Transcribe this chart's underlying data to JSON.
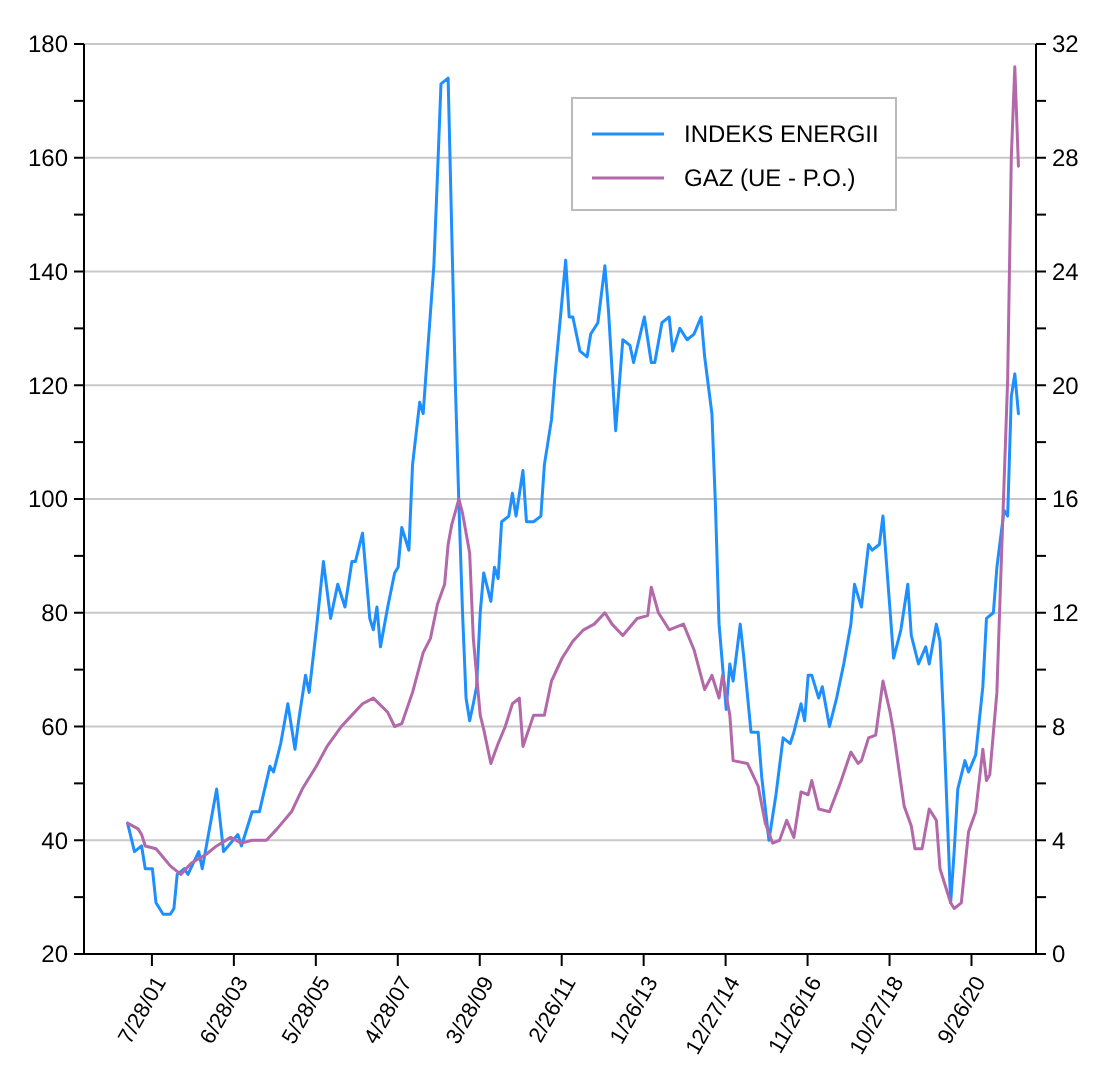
{
  "chart_data": {
    "type": "line",
    "xlim": [
      "1999-12-26",
      "2022-03-31"
    ],
    "xticks": [
      {
        "value": "2001-07-28",
        "label": "7/28/01"
      },
      {
        "value": "2003-06-28",
        "label": "6/28/03"
      },
      {
        "value": "2005-05-28",
        "label": "5/28/05"
      },
      {
        "value": "2007-04-28",
        "label": "4/28/07"
      },
      {
        "value": "2009-03-28",
        "label": "3/28/09"
      },
      {
        "value": "2011-02-26",
        "label": "2/26/11"
      },
      {
        "value": "2013-01-26",
        "label": "1/26/13"
      },
      {
        "value": "2014-12-27",
        "label": "12/27/14"
      },
      {
        "value": "2016-11-26",
        "label": "11/26/16"
      },
      {
        "value": "2018-10-27",
        "label": "10/27/18"
      },
      {
        "value": "2020-09-26",
        "label": "9/26/20"
      }
    ],
    "ylim": [
      20,
      180
    ],
    "yticks": [
      20,
      {
        "value": 30,
        "label": null
      },
      40,
      {
        "value": 50,
        "label": null
      },
      60,
      {
        "value": 70,
        "label": null
      },
      80,
      {
        "value": 90,
        "label": null
      },
      100,
      {
        "value": 110,
        "label": null
      },
      120,
      {
        "value": 130,
        "label": null
      },
      140,
      {
        "value": 150,
        "label": null
      },
      160,
      {
        "value": 170,
        "label": null
      },
      180
    ],
    "y2lim": [
      0,
      32
    ],
    "y2ticks": [
      0,
      {
        "value": 2,
        "label": null
      },
      4,
      {
        "value": 6,
        "label": null
      },
      8,
      {
        "value": 10,
        "label": null
      },
      12,
      {
        "value": 14,
        "label": null
      },
      16,
      {
        "value": 18,
        "label": null
      },
      20,
      {
        "value": 22,
        "label": null
      },
      24,
      {
        "value": 26,
        "label": null
      },
      28,
      {
        "value": 30,
        "label": null
      },
      32
    ],
    "grid": "y",
    "legend": "top right",
    "marker": "none",
    "line_style": "solid",
    "series": [
      {
        "name": "INDEKS ENERGII",
        "color": "#1e8fff",
        "x": [
          "2001-01",
          "2001-03",
          "2001-05",
          "2001-06",
          "2001-08",
          "2001-09",
          "2001-11",
          "2002-01",
          "2002-02",
          "2002-03",
          "2002-05",
          "2002-06",
          "2002-09",
          "2002-10",
          "2003-02",
          "2003-04",
          "2003-08",
          "2003-09",
          "2003-12",
          "2004-02",
          "2004-05",
          "2004-06",
          "2004-08",
          "2004-10",
          "2004-12",
          "2005-01",
          "2005-03",
          "2005-04",
          "2005-06",
          "2005-08",
          "2005-10",
          "2005-12",
          "2006-02",
          "2006-04",
          "2006-05",
          "2006-07",
          "2006-09",
          "2006-10",
          "2006-11",
          "2006-12",
          "2007-02",
          "2007-04",
          "2007-05",
          "2007-06",
          "2007-08",
          "2007-09",
          "2007-11",
          "2007-12",
          "2008-01",
          "2008-03",
          "2008-04",
          "2008-05",
          "2008-07",
          "2008-08",
          "2008-09",
          "2008-10",
          "2008-11",
          "2008-12",
          "2009-01",
          "2009-02",
          "2009-03",
          "2009-04",
          "2009-05",
          "2009-07",
          "2009-08",
          "2009-09",
          "2009-10",
          "2009-12",
          "2010-01",
          "2010-02",
          "2010-04",
          "2010-05",
          "2010-07",
          "2010-09",
          "2010-10",
          "2010-12",
          "2011-01",
          "2011-03",
          "2011-04",
          "2011-05",
          "2011-06",
          "2011-08",
          "2011-10",
          "2011-11",
          "2012-01",
          "2012-03",
          "2012-04",
          "2012-06",
          "2012-08",
          "2012-10",
          "2012-11",
          "2013-02",
          "2013-04",
          "2013-05",
          "2013-07",
          "2013-09",
          "2013-10",
          "2013-12",
          "2014-02",
          "2014-04",
          "2014-06",
          "2014-07",
          "2014-09",
          "2014-10",
          "2014-11",
          "2015-01",
          "2015-02",
          "2015-03",
          "2015-05",
          "2015-06",
          "2015-08",
          "2015-10",
          "2015-11",
          "2016-01",
          "2016-03",
          "2016-05",
          "2016-07",
          "2016-08",
          "2016-10",
          "2016-11",
          "2016-12",
          "2017-01",
          "2017-03",
          "2017-04",
          "2017-06",
          "2017-08",
          "2017-10",
          "2017-12",
          "2018-01",
          "2018-03",
          "2018-05",
          "2018-06",
          "2018-08",
          "2018-09",
          "2018-12",
          "2019-02",
          "2019-04",
          "2019-05",
          "2019-07",
          "2019-09",
          "2019-10",
          "2019-12",
          "2020-01",
          "2020-02",
          "2020-04",
          "2020-05",
          "2020-06",
          "2020-08",
          "2020-09",
          "2020-11",
          "2021-01",
          "2021-02",
          "2021-04",
          "2021-05",
          "2021-07",
          "2021-08",
          "2021-09",
          "2021-10",
          "2021-11"
        ],
        "values": [
          43,
          38,
          39,
          35,
          35,
          29,
          27,
          27,
          28,
          34,
          35,
          34,
          38,
          35,
          49,
          38,
          41,
          39,
          45,
          45,
          53,
          52,
          57,
          64,
          56,
          61,
          69,
          66,
          77,
          89,
          79,
          85,
          81,
          89,
          89,
          94,
          79,
          77,
          81,
          74,
          81,
          87,
          88,
          95,
          91,
          106,
          117,
          115,
          124,
          141,
          157,
          173,
          174,
          147,
          120,
          99,
          80,
          65,
          61,
          64,
          67,
          80,
          87,
          82,
          88,
          86,
          96,
          97,
          101,
          97,
          105,
          96,
          96,
          97,
          106,
          114,
          122,
          135,
          142,
          132,
          132,
          126,
          125,
          129,
          131,
          141,
          133,
          112,
          128,
          127,
          124,
          132,
          124,
          124,
          131,
          132,
          126,
          130,
          128,
          129,
          132,
          125,
          115,
          99,
          78,
          63,
          71,
          68,
          78,
          72,
          59,
          59,
          51,
          40,
          48,
          58,
          57,
          59,
          64,
          61,
          69,
          69,
          65,
          67,
          60,
          65,
          71,
          78,
          85,
          81,
          92,
          91,
          92,
          97,
          72,
          77,
          85,
          76,
          71,
          74,
          71,
          78,
          75,
          61,
          29,
          38,
          49,
          54,
          52,
          55,
          67,
          79,
          80,
          88,
          98,
          97,
          118,
          122,
          115
        ]
      },
      {
        "name": "GAZ (UE - P.O.)",
        "color": "#b368aa",
        "axis": "y2",
        "x": [
          "2001-01",
          "2001-04",
          "2001-05",
          "2001-06",
          "2001-09",
          "2001-11",
          "2002-01",
          "2002-04",
          "2002-07",
          "2002-11",
          "2003-02",
          "2003-06",
          "2003-09",
          "2003-12",
          "2004-04",
          "2004-07",
          "2004-11",
          "2005-02",
          "2005-06",
          "2005-09",
          "2006-01",
          "2006-04",
          "2006-07",
          "2006-10",
          "2007-02",
          "2007-04",
          "2007-06",
          "2007-09",
          "2007-12",
          "2008-02",
          "2008-04",
          "2008-06",
          "2008-07",
          "2008-08",
          "2008-10",
          "2008-11",
          "2009-01",
          "2009-02",
          "2009-04",
          "2009-05",
          "2009-07",
          "2009-09",
          "2009-11",
          "2010-01",
          "2010-03",
          "2010-04",
          "2010-07",
          "2010-10",
          "2010-12",
          "2011-03",
          "2011-06",
          "2011-09",
          "2011-12",
          "2012-03",
          "2012-05",
          "2012-08",
          "2012-12",
          "2013-03",
          "2013-04",
          "2013-06",
          "2013-09",
          "2014-01",
          "2014-04",
          "2014-07",
          "2014-09",
          "2014-11",
          "2014-12",
          "2015-02",
          "2015-03",
          "2015-07",
          "2015-10",
          "2015-12",
          "2016-02",
          "2016-04",
          "2016-06",
          "2016-08",
          "2016-10",
          "2016-12",
          "2017-01",
          "2017-03",
          "2017-06",
          "2017-09",
          "2017-12",
          "2018-02",
          "2018-03",
          "2018-05",
          "2018-07",
          "2018-09",
          "2018-11",
          "2018-12",
          "2019-03",
          "2019-05",
          "2019-06",
          "2019-08",
          "2019-10",
          "2019-12",
          "2020-01",
          "2020-04",
          "2020-05",
          "2020-07",
          "2020-09",
          "2020-11",
          "2021-01",
          "2021-02",
          "2021-03",
          "2021-05",
          "2021-06",
          "2021-08",
          "2021-09",
          "2021-10",
          "2021-11"
        ],
        "values": [
          4.6,
          4.4,
          4.2,
          3.8,
          3.7,
          3.4,
          3.1,
          2.8,
          3.2,
          3.5,
          3.8,
          4.1,
          3.9,
          4,
          4,
          4.4,
          5,
          5.8,
          6.6,
          7.3,
          8,
          8.4,
          8.8,
          9,
          8.5,
          8,
          8.1,
          9.2,
          10.6,
          11.1,
          12.3,
          13,
          14.4,
          15.1,
          16,
          15.5,
          14.1,
          11.1,
          8.4,
          7.9,
          6.7,
          7.4,
          8,
          8.8,
          9,
          7.3,
          8.4,
          8.4,
          9.6,
          10.4,
          11,
          11.4,
          11.6,
          12,
          11.6,
          11.2,
          11.8,
          11.9,
          12.9,
          12,
          11.4,
          11.6,
          10.7,
          9.3,
          9.8,
          9,
          9.8,
          8.4,
          6.8,
          6.7,
          5.9,
          4.6,
          3.9,
          4,
          4.7,
          4.1,
          5.7,
          5.6,
          6.1,
          5.1,
          5,
          6,
          7.1,
          6.7,
          6.8,
          7.6,
          7.7,
          9.6,
          8.5,
          7.8,
          5.2,
          4.5,
          3.7,
          3.7,
          5.1,
          4.7,
          3,
          1.8,
          1.6,
          1.8,
          4.3,
          5,
          7.2,
          6.1,
          6.3,
          9.2,
          13,
          20.2,
          28,
          31.2,
          27.7
        ]
      }
    ]
  }
}
